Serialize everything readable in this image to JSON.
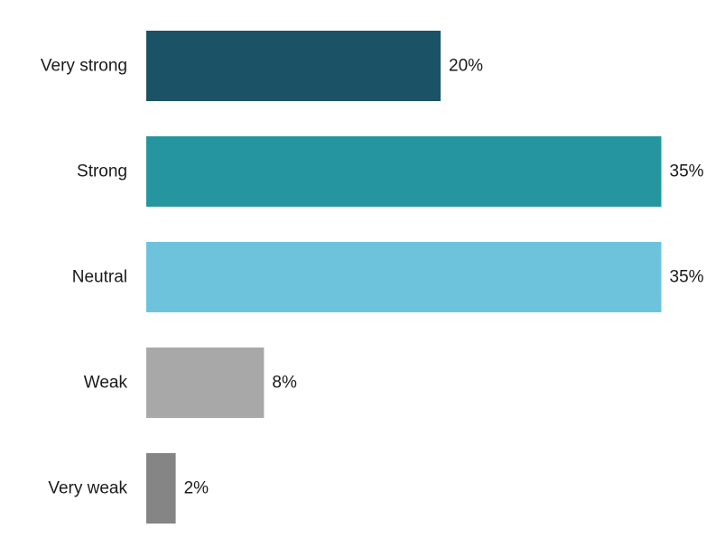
{
  "chart_data": {
    "type": "bar",
    "orientation": "horizontal",
    "categories": [
      "Very strong",
      "Strong",
      "Neutral",
      "Weak",
      "Very weak"
    ],
    "values": [
      20,
      35,
      35,
      8,
      2
    ],
    "value_labels": [
      "20%",
      "35%",
      "35%",
      "8%",
      "2%"
    ],
    "colors": [
      "#1b5266",
      "#2596a0",
      "#6ec3dc",
      "#a8a8a8",
      "#858585"
    ],
    "title": "",
    "xlabel": "",
    "ylabel": "",
    "grid": false,
    "legend": "none"
  }
}
